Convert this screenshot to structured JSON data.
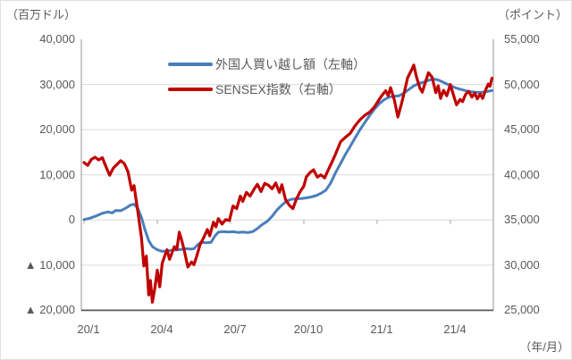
{
  "axes": {
    "left": {
      "title": "（百万ドル）",
      "tick_labels": [
        "40,000",
        "30,000",
        "20,000",
        "10,000",
        "0",
        "▲ 10,000",
        "▲ 20,000"
      ]
    },
    "right": {
      "title": "（ポイント）",
      "tick_labels": [
        "55,000",
        "50,000",
        "45,000",
        "40,000",
        "35,000",
        "30,000",
        "25,000"
      ]
    },
    "x": {
      "title": "（年/月）",
      "tick_labels": [
        "20/1",
        "20/4",
        "20/7",
        "20/10",
        "21/1",
        "21/4"
      ]
    }
  },
  "legend": {
    "items": [
      {
        "label": "外国人買い越し額（左軸）",
        "color": "#4A7EBB"
      },
      {
        "label": "SENSEX指数（右軸）",
        "color": "#C00000"
      }
    ]
  },
  "chart_data": {
    "type": "line",
    "title": "",
    "x_axis": {
      "unit": "year/month",
      "tick_labels": [
        "20/1",
        "20/4",
        "20/7",
        "20/10",
        "21/1",
        "21/4"
      ],
      "tick_month_offsets": [
        0,
        3,
        6,
        9,
        12,
        15
      ],
      "range_months": [
        0,
        16.7
      ]
    },
    "left_axis": {
      "label": "百万ドル",
      "min": -20000,
      "max": 40000,
      "tick_step": 10000
    },
    "right_axis": {
      "label": "ポイント",
      "min": 25000,
      "max": 55000,
      "tick_step": 5000
    },
    "grid": true,
    "legend_position": "top-inside",
    "series": [
      {
        "name": "外国人買い越し額（左軸）",
        "axis": "left",
        "color": "#4A7EBB",
        "points": [
          [
            0,
            100
          ],
          [
            0.25,
            400
          ],
          [
            0.5,
            900
          ],
          [
            0.75,
            1500
          ],
          [
            1,
            1800
          ],
          [
            1.15,
            1550
          ],
          [
            1.3,
            2100
          ],
          [
            1.5,
            2050
          ],
          [
            1.7,
            2600
          ],
          [
            1.9,
            3300
          ],
          [
            2.05,
            3500
          ],
          [
            2.2,
            2600
          ],
          [
            2.35,
            600
          ],
          [
            2.5,
            -2200
          ],
          [
            2.65,
            -4600
          ],
          [
            2.8,
            -5900
          ],
          [
            3,
            -6600
          ],
          [
            3.2,
            -6950
          ],
          [
            3.4,
            -6850
          ],
          [
            3.6,
            -6700
          ],
          [
            3.8,
            -6600
          ],
          [
            4,
            -6500
          ],
          [
            4.2,
            -6350
          ],
          [
            4.35,
            -6450
          ],
          [
            4.5,
            -6350
          ],
          [
            4.65,
            -5500
          ],
          [
            4.8,
            -4900
          ],
          [
            5,
            -5050
          ],
          [
            5.2,
            -4950
          ],
          [
            5.35,
            -3600
          ],
          [
            5.5,
            -2700
          ],
          [
            5.7,
            -2550
          ],
          [
            5.9,
            -2650
          ],
          [
            6.1,
            -2600
          ],
          [
            6.3,
            -2750
          ],
          [
            6.5,
            -2650
          ],
          [
            6.7,
            -2800
          ],
          [
            6.9,
            -2600
          ],
          [
            7.1,
            -1900
          ],
          [
            7.3,
            -1000
          ],
          [
            7.5,
            -300
          ],
          [
            7.7,
            800
          ],
          [
            7.9,
            2200
          ],
          [
            8.1,
            3300
          ],
          [
            8.3,
            4200
          ],
          [
            8.5,
            4600
          ],
          [
            8.7,
            4700
          ],
          [
            8.9,
            4750
          ],
          [
            9.1,
            4900
          ],
          [
            9.3,
            5100
          ],
          [
            9.5,
            5400
          ],
          [
            9.7,
            5900
          ],
          [
            9.9,
            6600
          ],
          [
            10.1,
            8200
          ],
          [
            10.3,
            10500
          ],
          [
            10.5,
            12500
          ],
          [
            10.7,
            14500
          ],
          [
            10.9,
            16300
          ],
          [
            11.1,
            18200
          ],
          [
            11.3,
            20000
          ],
          [
            11.5,
            21600
          ],
          [
            11.7,
            23200
          ],
          [
            11.9,
            24600
          ],
          [
            12.1,
            25800
          ],
          [
            12.3,
            26700
          ],
          [
            12.5,
            27200
          ],
          [
            12.7,
            27400
          ],
          [
            12.9,
            27500
          ],
          [
            13.1,
            28100
          ],
          [
            13.3,
            28900
          ],
          [
            13.5,
            29700
          ],
          [
            13.7,
            30200
          ],
          [
            13.9,
            30500
          ],
          [
            14.1,
            30900
          ],
          [
            14.3,
            31200
          ],
          [
            14.5,
            31000
          ],
          [
            14.7,
            30500
          ],
          [
            14.9,
            30000
          ],
          [
            15.1,
            29500
          ],
          [
            15.3,
            29100
          ],
          [
            15.5,
            28800
          ],
          [
            15.7,
            28500
          ],
          [
            15.9,
            28350
          ],
          [
            16.1,
            28250
          ],
          [
            16.3,
            28300
          ],
          [
            16.5,
            28450
          ],
          [
            16.7,
            28650
          ]
        ]
      },
      {
        "name": "SENSEX指数（右軸）",
        "axis": "right",
        "color": "#C00000",
        "points": [
          [
            0,
            41350
          ],
          [
            0.15,
            41050
          ],
          [
            0.3,
            41700
          ],
          [
            0.45,
            41950
          ],
          [
            0.6,
            41650
          ],
          [
            0.75,
            41900
          ],
          [
            0.9,
            40900
          ],
          [
            1.05,
            39950
          ],
          [
            1.2,
            40750
          ],
          [
            1.35,
            41150
          ],
          [
            1.5,
            41560
          ],
          [
            1.65,
            41250
          ],
          [
            1.8,
            40350
          ],
          [
            1.95,
            38300
          ],
          [
            2.05,
            38800
          ],
          [
            2.2,
            36000
          ],
          [
            2.35,
            33100
          ],
          [
            2.45,
            29900
          ],
          [
            2.55,
            31000
          ],
          [
            2.65,
            26700
          ],
          [
            2.72,
            28300
          ],
          [
            2.8,
            25900
          ],
          [
            2.9,
            27500
          ],
          [
            3,
            29450
          ],
          [
            3.1,
            27600
          ],
          [
            3.2,
            30200
          ],
          [
            3.3,
            31000
          ],
          [
            3.4,
            31700
          ],
          [
            3.5,
            30650
          ],
          [
            3.6,
            31350
          ],
          [
            3.7,
            32050
          ],
          [
            3.8,
            31750
          ],
          [
            3.9,
            33650
          ],
          [
            4,
            32750
          ],
          [
            4.1,
            31650
          ],
          [
            4.25,
            29800
          ],
          [
            4.4,
            30350
          ],
          [
            4.5,
            30050
          ],
          [
            4.6,
            30850
          ],
          [
            4.75,
            32250
          ],
          [
            4.9,
            33050
          ],
          [
            5.05,
            33950
          ],
          [
            5.15,
            33250
          ],
          [
            5.3,
            34750
          ],
          [
            5.4,
            34250
          ],
          [
            5.5,
            35150
          ],
          [
            5.65,
            34550
          ],
          [
            5.8,
            35050
          ],
          [
            5.95,
            34950
          ],
          [
            6.1,
            36550
          ],
          [
            6.25,
            36250
          ],
          [
            6.4,
            37650
          ],
          [
            6.5,
            37050
          ],
          [
            6.65,
            38050
          ],
          [
            6.8,
            37650
          ],
          [
            6.95,
            38350
          ],
          [
            7.1,
            38950
          ],
          [
            7.25,
            38150
          ],
          [
            7.4,
            39050
          ],
          [
            7.55,
            38850
          ],
          [
            7.7,
            38450
          ],
          [
            7.85,
            39100
          ],
          [
            8,
            38050
          ],
          [
            8.1,
            38900
          ],
          [
            8.25,
            37250
          ],
          [
            8.4,
            36650
          ],
          [
            8.55,
            36250
          ],
          [
            8.7,
            37350
          ],
          [
            8.85,
            38150
          ],
          [
            9,
            38750
          ],
          [
            9.1,
            39750
          ],
          [
            9.25,
            40250
          ],
          [
            9.4,
            40550
          ],
          [
            9.55,
            39750
          ],
          [
            9.7,
            40000
          ],
          [
            9.85,
            39650
          ],
          [
            10,
            40550
          ],
          [
            10.15,
            41400
          ],
          [
            10.3,
            42300
          ],
          [
            10.5,
            43650
          ],
          [
            10.7,
            44150
          ],
          [
            10.9,
            44600
          ],
          [
            11.1,
            45450
          ],
          [
            11.3,
            46100
          ],
          [
            11.5,
            46600
          ],
          [
            11.7,
            46950
          ],
          [
            11.9,
            47550
          ],
          [
            12.05,
            48200
          ],
          [
            12.2,
            48800
          ],
          [
            12.35,
            49300
          ],
          [
            12.45,
            48750
          ],
          [
            12.55,
            49650
          ],
          [
            12.7,
            48350
          ],
          [
            12.85,
            46400
          ],
          [
            13,
            47900
          ],
          [
            13.1,
            49000
          ],
          [
            13.25,
            50750
          ],
          [
            13.4,
            51550
          ],
          [
            13.5,
            52150
          ],
          [
            13.6,
            50950
          ],
          [
            13.75,
            49600
          ],
          [
            13.85,
            49150
          ],
          [
            14,
            50450
          ],
          [
            14.1,
            51300
          ],
          [
            14.25,
            50800
          ],
          [
            14.4,
            49100
          ],
          [
            14.5,
            49850
          ],
          [
            14.6,
            48450
          ],
          [
            14.72,
            49350
          ],
          [
            14.85,
            48750
          ],
          [
            15,
            50000
          ],
          [
            15.1,
            49050
          ],
          [
            15.25,
            47750
          ],
          [
            15.4,
            48350
          ],
          [
            15.5,
            48100
          ],
          [
            15.62,
            48900
          ],
          [
            15.75,
            49250
          ],
          [
            15.88,
            48600
          ],
          [
            16,
            49050
          ],
          [
            16.1,
            48400
          ],
          [
            16.22,
            48950
          ],
          [
            16.32,
            48450
          ],
          [
            16.45,
            49450
          ],
          [
            16.55,
            50050
          ],
          [
            16.62,
            49800
          ],
          [
            16.7,
            50700
          ]
        ]
      }
    ]
  }
}
